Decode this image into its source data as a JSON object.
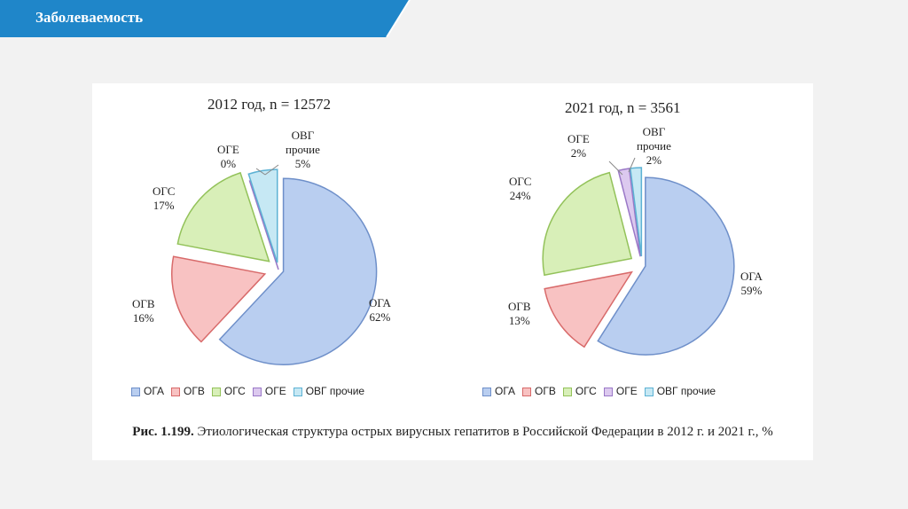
{
  "slide": {
    "title": "Заболеваемость",
    "banner_color": "#1f86c9"
  },
  "figure": {
    "caption_prefix": "Рис. 1.199.",
    "caption_text": "Этиологическая структура острых вирусных гепатитов в Российской Федерации в 2012 г. и 2021 г., %"
  },
  "legend": [
    {
      "label": "ОГА",
      "color": "#b9cef0",
      "stroke": "#6e8fc9"
    },
    {
      "label": "ОГВ",
      "color": "#f8c2c2",
      "stroke": "#d86a6a"
    },
    {
      "label": "ОГС",
      "color": "#d8efb8",
      "stroke": "#93c25a"
    },
    {
      "label": "ОГЕ",
      "color": "#dcc9ef",
      "stroke": "#9a78c7"
    },
    {
      "label": "ОВГ прочие",
      "color": "#c6e8f4",
      "stroke": "#5db2d4"
    }
  ],
  "chart_data": [
    {
      "type": "pie",
      "title": "2012 год, n = 12572",
      "categories": [
        "ОГА",
        "ОГВ",
        "ОГС",
        "ОГЕ",
        "ОВГ прочие"
      ],
      "values": [
        62,
        16,
        17,
        0,
        5
      ],
      "labels": [
        {
          "name": "ОГА",
          "value": "62%"
        },
        {
          "name": "ОГВ",
          "value": "16%"
        },
        {
          "name": "ОГС",
          "value": "17%"
        },
        {
          "name": "ОГЕ",
          "value": "0%"
        },
        {
          "name": "ОВГ прочие",
          "value": "5%"
        }
      ],
      "legend_position": "bottom"
    },
    {
      "type": "pie",
      "title": "2021 год, n = 3561",
      "categories": [
        "ОГА",
        "ОГВ",
        "ОГС",
        "ОГЕ",
        "ОВГ прочие"
      ],
      "values": [
        59,
        13,
        24,
        2,
        2
      ],
      "labels": [
        {
          "name": "ОГА",
          "value": "59%"
        },
        {
          "name": "ОГВ",
          "value": "13%"
        },
        {
          "name": "ОГС",
          "value": "24%"
        },
        {
          "name": "ОГЕ",
          "value": "2%"
        },
        {
          "name": "ОВГ прочие",
          "value": "2%"
        }
      ],
      "legend_position": "bottom"
    }
  ]
}
